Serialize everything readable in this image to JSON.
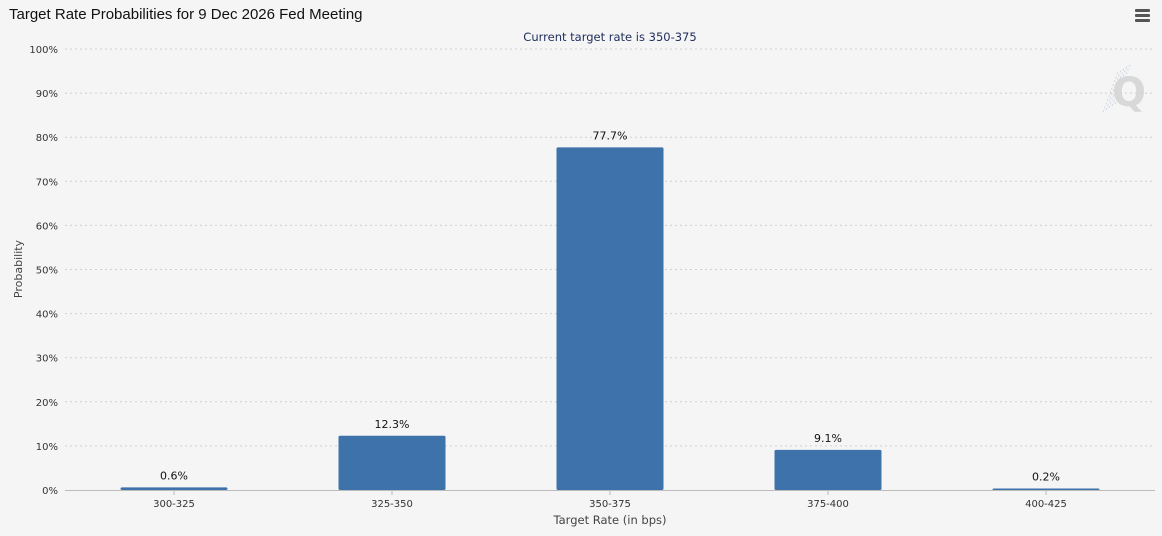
{
  "header": {
    "title": "Target Rate Probabilities for 9 Dec 2026 Fed Meeting",
    "menu_icon": "hamburger-menu-icon"
  },
  "watermark": {
    "letter": "Q"
  },
  "colors": {
    "bar": "#3d72aa",
    "subtitle": "#1f2d5a",
    "grid": "#cfcfcf",
    "background": "#f5f5f5"
  },
  "chart_data": {
    "type": "bar",
    "subtitle": "Current target rate is 350-375",
    "xlabel": "Target Rate (in bps)",
    "ylabel": "Probability",
    "categories": [
      "300-325",
      "325-350",
      "350-375",
      "375-400",
      "400-425"
    ],
    "values": [
      0.6,
      12.3,
      77.7,
      9.1,
      0.2
    ],
    "data_labels": [
      "0.6%",
      "12.3%",
      "77.7%",
      "9.1%",
      "0.2%"
    ],
    "ylim": [
      0,
      100
    ],
    "yticks": [
      "0%",
      "10%",
      "20%",
      "30%",
      "40%",
      "50%",
      "60%",
      "70%",
      "80%",
      "90%",
      "100%"
    ],
    "grid": true,
    "legend": "none"
  }
}
